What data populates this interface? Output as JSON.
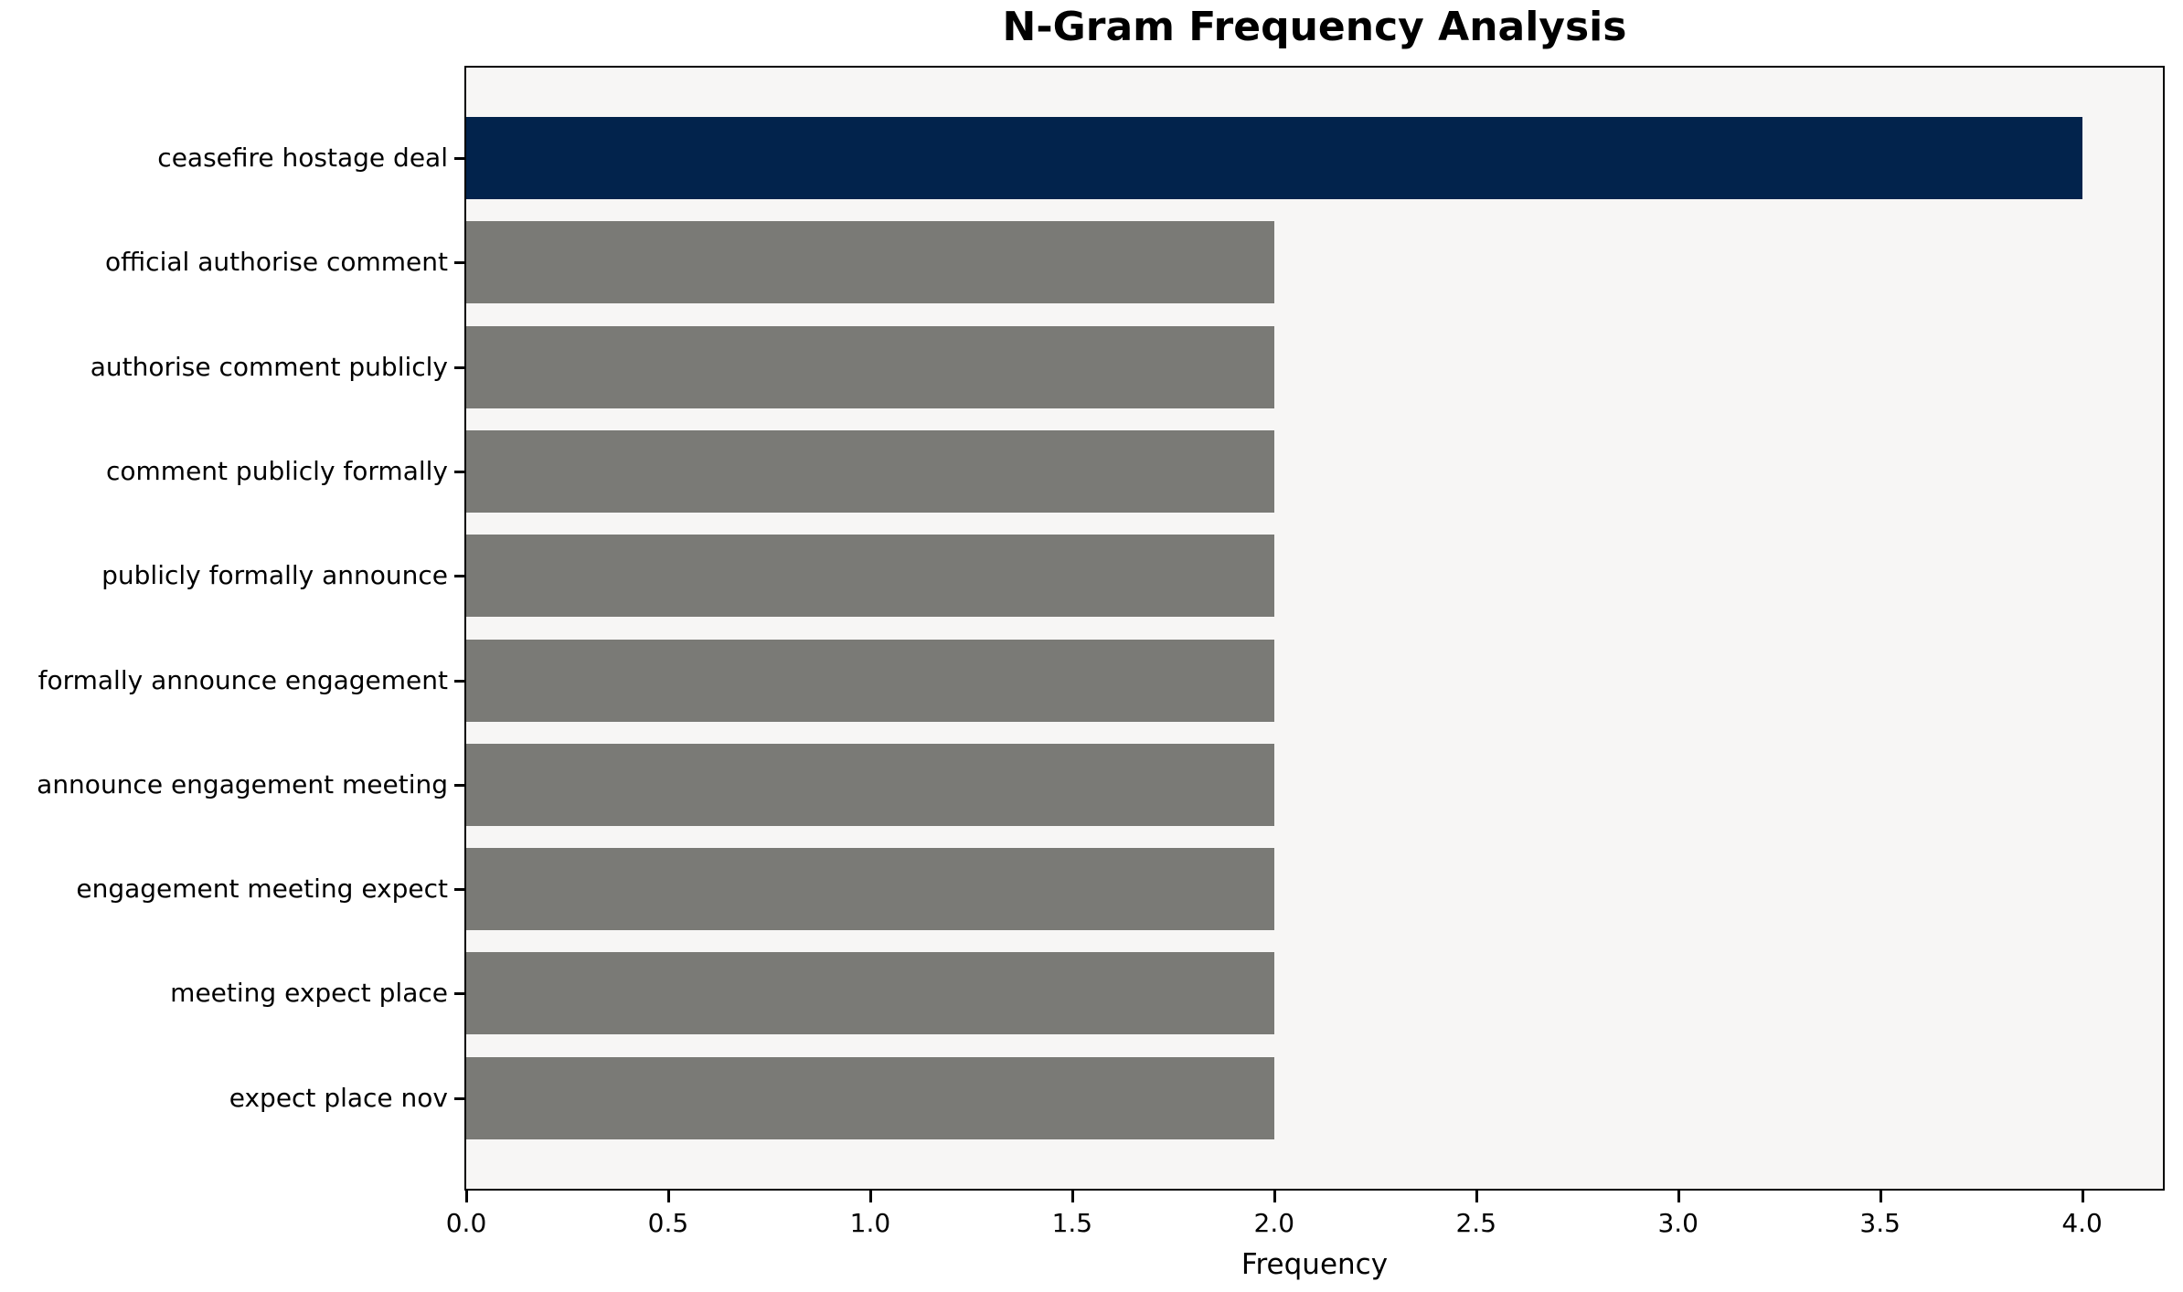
{
  "figure": {
    "background_color": "#ffffff",
    "plot_background_color": "#f7f6f5",
    "spine_color": "#000000"
  },
  "chart_data": {
    "type": "bar",
    "orientation": "horizontal",
    "title": "N-Gram Frequency Analysis",
    "xlabel": "Frequency",
    "ylabel": "",
    "categories": [
      "ceasefire hostage deal",
      "official authorise comment",
      "authorise comment publicly",
      "comment publicly formally",
      "publicly formally announce",
      "formally announce engagement",
      "announce engagement meeting",
      "engagement meeting expect",
      "meeting expect place",
      "expect place nov"
    ],
    "values": [
      4.0,
      2.0,
      2.0,
      2.0,
      2.0,
      2.0,
      2.0,
      2.0,
      2.0,
      2.0
    ],
    "bar_colors": [
      "#02234c",
      "#7a7a76",
      "#7a7a76",
      "#7a7a76",
      "#7a7a76",
      "#7a7a76",
      "#7a7a76",
      "#7a7a76",
      "#7a7a76",
      "#7a7a76"
    ],
    "highlight_color": "#02234c",
    "default_bar_color": "#7a7a76",
    "xlim": [
      0.0,
      4.2
    ],
    "xticks": [
      0.0,
      0.5,
      1.0,
      1.5,
      2.0,
      2.5,
      3.0,
      3.5,
      4.0
    ],
    "xtick_labels": [
      "0.0",
      "0.5",
      "1.0",
      "1.5",
      "2.0",
      "2.5",
      "3.0",
      "3.5",
      "4.0"
    ],
    "grid": false,
    "legend": null
  }
}
